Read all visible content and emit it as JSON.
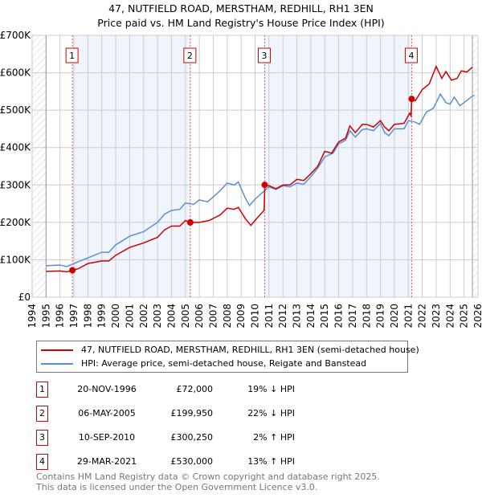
{
  "chart_data": {
    "type": "line",
    "title": "47, NUTFIELD ROAD, MERSTHAM, REDHILL, RH1 3EN",
    "subtitle": "Price paid vs. HM Land Registry's House Price Index (HPI)",
    "xlim": [
      1994,
      2026
    ],
    "ylim": [
      0,
      700000
    ],
    "x_ticks": [
      "1994",
      "1995",
      "1996",
      "1997",
      "1998",
      "1999",
      "2000",
      "2001",
      "2002",
      "2003",
      "2004",
      "2005",
      "2006",
      "2007",
      "2008",
      "2009",
      "2010",
      "2011",
      "2012",
      "2013",
      "2014",
      "2015",
      "2016",
      "2017",
      "2018",
      "2019",
      "2020",
      "2021",
      "2022",
      "2023",
      "2024",
      "2025",
      "2026"
    ],
    "y_ticks": [
      {
        "v": 0,
        "label": "£0"
      },
      {
        "v": 100000,
        "label": "£100K"
      },
      {
        "v": 200000,
        "label": "£200K"
      },
      {
        "v": 300000,
        "label": "£300K"
      },
      {
        "v": 400000,
        "label": "£400K"
      },
      {
        "v": 500000,
        "label": "£500K"
      },
      {
        "v": 600000,
        "label": "£600K"
      },
      {
        "v": 700000,
        "label": "£700K"
      }
    ],
    "grid": true,
    "series": [
      {
        "name": "47, NUTFIELD ROAD, MERSTHAM, REDHILL, RH1 3EN (semi-detached house)",
        "color": "#cc0000",
        "points": [
          [
            1995,
            69
          ],
          [
            1996,
            70
          ],
          [
            1996.5,
            68
          ],
          [
            1996.9,
            72
          ],
          [
            1997.3,
            76
          ],
          [
            1998,
            90
          ],
          [
            1999,
            97
          ],
          [
            1999.5,
            97
          ],
          [
            2000,
            112
          ],
          [
            2001,
            133
          ],
          [
            2002,
            145
          ],
          [
            2003,
            160
          ],
          [
            2003.5,
            180
          ],
          [
            2004,
            190
          ],
          [
            2004.6,
            190
          ],
          [
            2005,
            205
          ],
          [
            2005.35,
            200
          ],
          [
            2006,
            200
          ],
          [
            2006.7,
            205
          ],
          [
            2007.5,
            220
          ],
          [
            2008,
            238
          ],
          [
            2008.5,
            235
          ],
          [
            2008.8,
            240
          ],
          [
            2009.3,
            210
          ],
          [
            2009.7,
            192
          ],
          [
            2010,
            205
          ],
          [
            2010.3,
            218
          ],
          [
            2010.65,
            232
          ],
          [
            2010.7,
            300
          ],
          [
            2011,
            298
          ],
          [
            2011.5,
            290
          ],
          [
            2012,
            300
          ],
          [
            2012.5,
            300
          ],
          [
            2013,
            315
          ],
          [
            2013.5,
            312
          ],
          [
            2014,
            330
          ],
          [
            2014.5,
            350
          ],
          [
            2015,
            390
          ],
          [
            2015.5,
            385
          ],
          [
            2016,
            415
          ],
          [
            2016.5,
            425
          ],
          [
            2016.8,
            458
          ],
          [
            2017.2,
            440
          ],
          [
            2017.7,
            462
          ],
          [
            2018,
            462
          ],
          [
            2018.5,
            455
          ],
          [
            2019,
            472
          ],
          [
            2019.3,
            455
          ],
          [
            2019.6,
            445
          ],
          [
            2020,
            462
          ],
          [
            2020.7,
            465
          ],
          [
            2021.1,
            492
          ],
          [
            2021.2,
            485
          ],
          [
            2021.24,
            530
          ],
          [
            2021.5,
            525
          ],
          [
            2022,
            555
          ],
          [
            2022.5,
            570
          ],
          [
            2023,
            617
          ],
          [
            2023.4,
            585
          ],
          [
            2023.7,
            603
          ],
          [
            2024.1,
            580
          ],
          [
            2024.5,
            585
          ],
          [
            2024.8,
            605
          ],
          [
            2025.2,
            602
          ],
          [
            2025.6,
            615
          ]
        ]
      },
      {
        "name": "HPI: Average price, semi-detached house, Reigate and Banstead",
        "color": "#5b8fd4",
        "points": [
          [
            1995,
            84
          ],
          [
            1996,
            86
          ],
          [
            1996.5,
            82
          ],
          [
            1997,
            90
          ],
          [
            1998,
            105
          ],
          [
            1999,
            120
          ],
          [
            1999.5,
            120
          ],
          [
            2000,
            140
          ],
          [
            2001,
            163
          ],
          [
            2002,
            175
          ],
          [
            2003,
            200
          ],
          [
            2003.5,
            222
          ],
          [
            2004,
            232
          ],
          [
            2004.6,
            235
          ],
          [
            2005,
            252
          ],
          [
            2005.6,
            248
          ],
          [
            2006,
            260
          ],
          [
            2006.6,
            255
          ],
          [
            2007,
            268
          ],
          [
            2007.5,
            285
          ],
          [
            2008,
            305
          ],
          [
            2008.5,
            300
          ],
          [
            2008.8,
            308
          ],
          [
            2009.3,
            265
          ],
          [
            2009.6,
            245
          ],
          [
            2010,
            262
          ],
          [
            2010.6,
            282
          ],
          [
            2011,
            295
          ],
          [
            2011.5,
            288
          ],
          [
            2012,
            298
          ],
          [
            2012.5,
            295
          ],
          [
            2013,
            305
          ],
          [
            2013.5,
            302
          ],
          [
            2014,
            322
          ],
          [
            2014.5,
            345
          ],
          [
            2015,
            375
          ],
          [
            2015.6,
            385
          ],
          [
            2016,
            410
          ],
          [
            2016.5,
            420
          ],
          [
            2016.8,
            445
          ],
          [
            2017.2,
            428
          ],
          [
            2017.7,
            448
          ],
          [
            2018,
            450
          ],
          [
            2018.5,
            445
          ],
          [
            2019,
            465
          ],
          [
            2019.3,
            440
          ],
          [
            2019.6,
            432
          ],
          [
            2020,
            450
          ],
          [
            2020.7,
            450
          ],
          [
            2021,
            472
          ],
          [
            2021.5,
            468
          ],
          [
            2021.8,
            462
          ],
          [
            2022.3,
            495
          ],
          [
            2022.8,
            505
          ],
          [
            2023.3,
            543
          ],
          [
            2023.7,
            520
          ],
          [
            2024,
            516
          ],
          [
            2024.3,
            535
          ],
          [
            2024.7,
            512
          ],
          [
            2025,
            520
          ],
          [
            2025.5,
            535
          ],
          [
            2025.75,
            540
          ]
        ]
      }
    ],
    "sales": [
      {
        "n": "1",
        "x": 1996.89,
        "value": 72000,
        "date": "20-NOV-1996",
        "price": "£72,000",
        "hpi": "19% ↓ HPI"
      },
      {
        "n": "2",
        "x": 2005.35,
        "value": 199950,
        "date": "06-MAY-2005",
        "price": "£199,950",
        "hpi": "22% ↓ HPI"
      },
      {
        "n": "3",
        "x": 2010.69,
        "value": 300250,
        "date": "10-SEP-2010",
        "price": "£300,250",
        "hpi": "2% ↑ HPI"
      },
      {
        "n": "4",
        "x": 2021.24,
        "value": 530000,
        "date": "29-MAR-2021",
        "price": "£530,000",
        "hpi": "13% ↑ HPI"
      }
    ],
    "legend_position": "bottom"
  },
  "footer": [
    "Contains HM Land Registry data © Crown copyright and database right 2025.",
    "This data is licensed under the Open Government Licence v3.0."
  ]
}
